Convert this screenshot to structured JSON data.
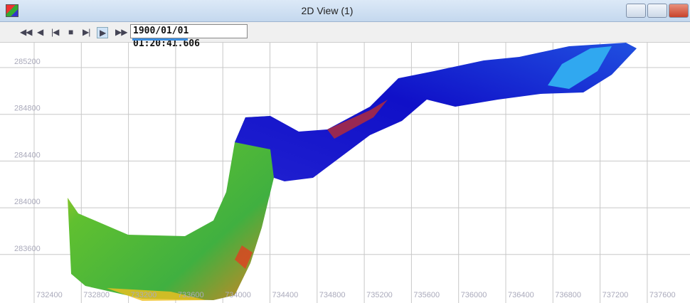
{
  "window": {
    "title": "2D View (1)"
  },
  "toolbar": {
    "timestamp": "1900/01/01 01:20:41.606"
  },
  "view": {
    "xticks": [
      "732400",
      "732800",
      "733200",
      "733600",
      "734000",
      "734400",
      "734800",
      "735200",
      "735600",
      "736000",
      "736400",
      "736800",
      "737200",
      "737600"
    ],
    "yticks": [
      "285200",
      "284800",
      "284400",
      "284000",
      "283600"
    ]
  }
}
